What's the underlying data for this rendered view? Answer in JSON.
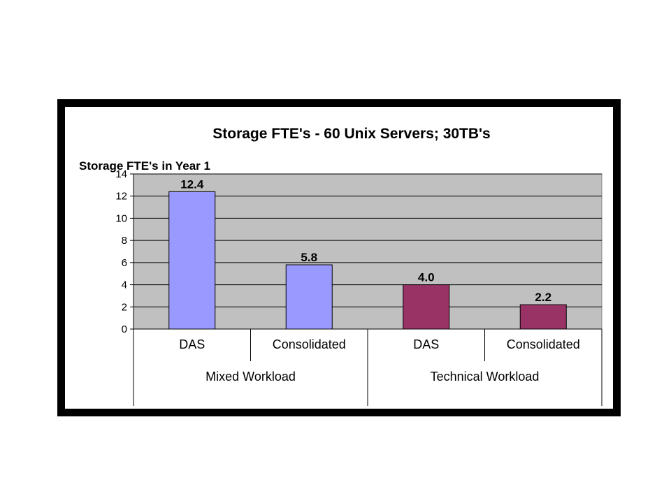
{
  "chart_data": {
    "type": "bar",
    "title": "Storage FTE's - 60 Unix Servers; 30TB's",
    "ylabel": "Storage FTE's in Year 1",
    "ylim": [
      0,
      14
    ],
    "yticks": [
      0,
      2,
      4,
      6,
      8,
      10,
      12,
      14
    ],
    "grid": true,
    "categories": [
      "DAS",
      "Consolidated",
      "DAS",
      "Consolidated"
    ],
    "groups": [
      {
        "label": "Mixed Workload",
        "span": [
          0,
          1
        ]
      },
      {
        "label": "Technical Workload",
        "span": [
          2,
          3
        ]
      }
    ],
    "values": [
      12.4,
      5.8,
      4.0,
      2.2
    ],
    "value_labels": [
      "12.4",
      "5.8",
      "4.0",
      "2.2"
    ],
    "bar_colors": [
      "#9999ff",
      "#9999ff",
      "#993366",
      "#993366"
    ],
    "plot_background": "#c0c0c0"
  }
}
